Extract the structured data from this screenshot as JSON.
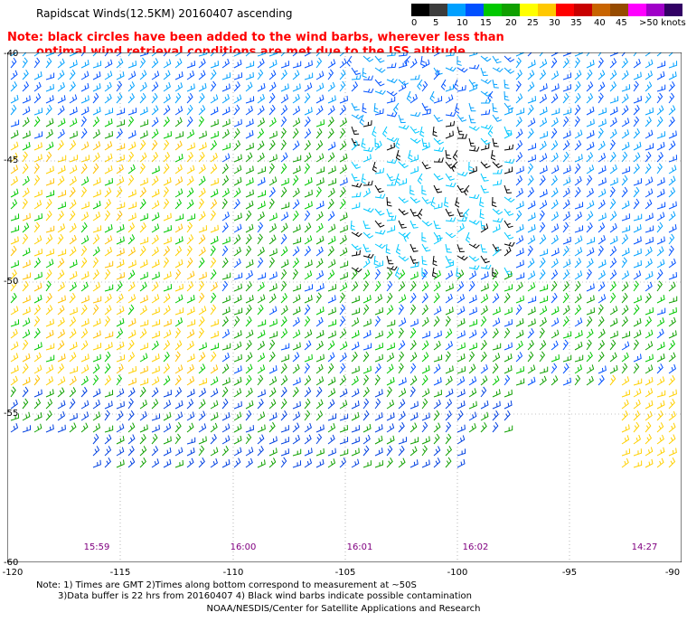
{
  "header": {
    "title": "Rapidscat Winds(12.5KM) 20160407 ascending"
  },
  "note": {
    "line1": "Note: black circles have been added to the wind barbs, wherever less than",
    "line2": "optimal wind retrieval conditions are met due to the ISS altitude changes."
  },
  "legend": {
    "colors": [
      "#000000",
      "#3c3c3c",
      "#00a0ff",
      "#0050ff",
      "#00c800",
      "#10a000",
      "#ffff00",
      "#ffc800",
      "#ff0000",
      "#c80000",
      "#c86400",
      "#964b00",
      "#ff00ff",
      "#a000c8",
      "#320064"
    ],
    "tick_labels": [
      "0",
      "5",
      "10",
      "15",
      "20",
      "25",
      "30",
      "35",
      "40",
      "45",
      ">50 knots"
    ]
  },
  "axes": {
    "lat_labels": [
      "-40",
      "-45",
      "-50",
      "-55",
      "-60"
    ],
    "lon_labels": [
      "-120",
      "-115",
      "-110",
      "-105",
      "-100",
      "-95",
      "-90"
    ]
  },
  "times": [
    "15:59",
    "16:00",
    "16:01",
    "16:02",
    "14:27"
  ],
  "footer": {
    "note_line1": "Note: 1) Times are GMT 2)Times along bottom correspond to measurement at ~50S",
    "note_line2": "3)Data buffer is 22 hrs from 20160407 4) Black wind barbs indicate possible contamination",
    "credit": "NOAA/NESDIS/Center for Satellite Applications and Research"
  }
}
